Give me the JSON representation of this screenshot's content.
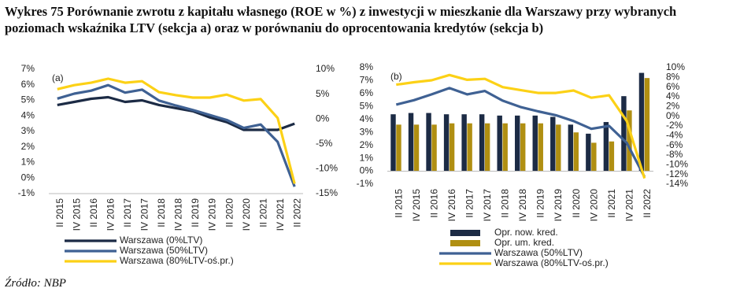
{
  "title": "Wykres 75 Porównanie zwrotu z kapitału własnego (ROE w %) z inwestycji w mieszkanie dla Warszawy przy wybranych poziomach wskaźnika LTV (sekcja a) oraz w porównaniu do oprocentowania kredytów (sekcja b)",
  "source": "Źródło: NBP",
  "chart_data": [
    {
      "type": "combo",
      "label": "(a)",
      "categories": [
        "II 2015",
        "IV 2015",
        "II 2016",
        "IV 2016",
        "II 2017",
        "IV 2017",
        "II 2018",
        "IV 2018",
        "II 2019",
        "IV 2019",
        "II 2020",
        "IV 2020",
        "II 2021",
        "IV 2021",
        "II 2022"
      ],
      "ylim": [
        -1,
        7
      ],
      "yticks": [
        {
          "value": -1,
          "label": "-1%"
        },
        {
          "value": 0,
          "label": "0%"
        },
        {
          "value": 1,
          "label": "1%"
        },
        {
          "value": 2,
          "label": "2%"
        },
        {
          "value": 3,
          "label": "3%"
        },
        {
          "value": 4,
          "label": "4%"
        },
        {
          "value": 5,
          "label": "5%"
        },
        {
          "value": 6,
          "label": "6%"
        },
        {
          "value": 7,
          "label": "7%"
        }
      ],
      "y2lim": [
        -15,
        10
      ],
      "y2ticks": [
        {
          "value": -15,
          "label": "-15%"
        },
        {
          "value": -10,
          "label": "-10%"
        },
        {
          "value": -5,
          "label": "-5%"
        },
        {
          "value": 0,
          "label": "0%"
        },
        {
          "value": 5,
          "label": "5%"
        },
        {
          "value": 10,
          "label": "10%"
        }
      ],
      "series": [
        {
          "name": "Warszawa  (0%LTV)",
          "kind": "line",
          "color": "#1c2b45",
          "axis": "y",
          "values": [
            4.7,
            4.9,
            5.1,
            5.2,
            4.9,
            5.0,
            4.7,
            4.5,
            4.3,
            3.9,
            3.6,
            3.1,
            3.1,
            3.1,
            3.5
          ]
        },
        {
          "name": "Warszawa  (50%LTV)",
          "kind": "line",
          "color": "#3f6193",
          "axis": "y2",
          "values": [
            4.1,
            5.1,
            5.7,
            6.8,
            5.3,
            5.9,
            3.7,
            2.7,
            1.8,
            0.8,
            -0.2,
            -1.8,
            -1.1,
            -4.6,
            -13.6
          ]
        },
        {
          "name": "Warszawa (80%LTV-oś.pr.)",
          "kind": "line",
          "color": "#fcd116",
          "axis": "y2",
          "values": [
            6.0,
            6.8,
            7.3,
            8.1,
            7.3,
            7.6,
            5.4,
            4.8,
            4.3,
            4.3,
            4.9,
            3.7,
            4.0,
            0.2,
            -13.0
          ]
        }
      ]
    },
    {
      "type": "combo",
      "label": "(b)",
      "categories": [
        "II 2015",
        "IV 2015",
        "II 2016",
        "IV 2016",
        "II 2017",
        "IV 2017",
        "II 2018",
        "IV 2018",
        "II 2019",
        "IV 2019",
        "II 2020",
        "IV 2020",
        "II 2021",
        "IV 2021",
        "II 2022"
      ],
      "ylim": [
        -1,
        8
      ],
      "yticks": [
        {
          "value": -1,
          "label": "-1%"
        },
        {
          "value": 0,
          "label": "0%"
        },
        {
          "value": 1,
          "label": "1%"
        },
        {
          "value": 2,
          "label": "2%"
        },
        {
          "value": 3,
          "label": "3%"
        },
        {
          "value": 4,
          "label": "4%"
        },
        {
          "value": 5,
          "label": "5%"
        },
        {
          "value": 6,
          "label": "6%"
        },
        {
          "value": 7,
          "label": "7%"
        },
        {
          "value": 8,
          "label": "8%"
        }
      ],
      "y2lim": [
        -14,
        10
      ],
      "y2ticks": [
        {
          "value": -14,
          "label": "-14%"
        },
        {
          "value": -12,
          "label": "-12%"
        },
        {
          "value": -10,
          "label": "-10%"
        },
        {
          "value": -8,
          "label": "-8%"
        },
        {
          "value": -6,
          "label": "-6%"
        },
        {
          "value": -4,
          "label": "-4%"
        },
        {
          "value": -2,
          "label": "-2%"
        },
        {
          "value": 0,
          "label": "0%"
        },
        {
          "value": 2,
          "label": "2%"
        },
        {
          "value": 4,
          "label": "4%"
        },
        {
          "value": 6,
          "label": "6%"
        },
        {
          "value": 8,
          "label": "8%"
        },
        {
          "value": 10,
          "label": "10%"
        }
      ],
      "series": [
        {
          "name": "Opr. now. kred.",
          "kind": "bar",
          "color": "#1c2b45",
          "axis": "y",
          "values": [
            4.4,
            4.5,
            4.5,
            4.4,
            4.4,
            4.4,
            4.3,
            4.3,
            4.3,
            4.2,
            3.6,
            2.9,
            3.8,
            5.8,
            7.6
          ]
        },
        {
          "name": "Opr. um. kred.",
          "kind": "bar",
          "color": "#b08f12",
          "axis": "y",
          "values": [
            3.6,
            3.6,
            3.6,
            3.7,
            3.7,
            3.7,
            3.7,
            3.7,
            3.7,
            3.6,
            3.0,
            2.2,
            2.3,
            4.7,
            7.2
          ]
        },
        {
          "name": "Warszawa  (50%LTV)",
          "kind": "line",
          "color": "#3f6193",
          "axis": "y2",
          "values": [
            2.4,
            3.3,
            4.5,
            5.8,
            4.5,
            5.2,
            3.2,
            1.9,
            1.0,
            0.2,
            -1.0,
            -2.6,
            -2.0,
            -5.5,
            -12.5
          ]
        },
        {
          "name": "Warszawa  (80%LTV-oś.pr.)",
          "kind": "line",
          "color": "#fcd116",
          "axis": "y2",
          "values": [
            6.5,
            7.0,
            7.4,
            8.5,
            7.5,
            7.7,
            6.0,
            5.4,
            4.8,
            4.8,
            5.3,
            3.8,
            4.3,
            -1.0,
            -12.8
          ]
        }
      ]
    }
  ]
}
